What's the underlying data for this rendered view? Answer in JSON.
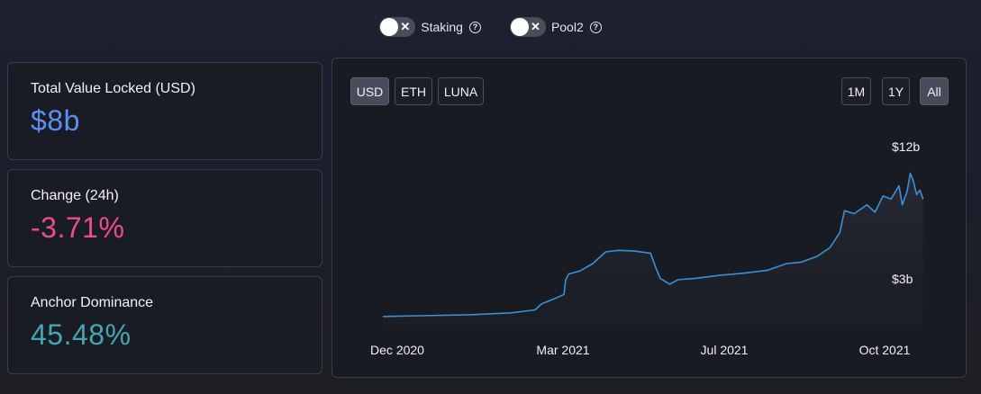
{
  "toggles": [
    {
      "label": "Staking",
      "state": "off"
    },
    {
      "label": "Pool2",
      "state": "off"
    }
  ],
  "stats": {
    "tvl": {
      "label": "Total Value Locked (USD)",
      "value": "$8b"
    },
    "change": {
      "label": "Change (24h)",
      "value": "-3.71%"
    },
    "dominance": {
      "label": "Anchor Dominance",
      "value": "45.48%"
    }
  },
  "chart": {
    "currency_buttons": [
      "USD",
      "ETH",
      "LUNA"
    ],
    "active_currency": "USD",
    "range_buttons": [
      "1M",
      "1Y",
      "All"
    ],
    "active_range": "All"
  },
  "chart_data": {
    "type": "area",
    "ytick_labels": [
      "$12b",
      "$3b"
    ],
    "xtick_labels": [
      "Dec 2020",
      "Mar 2021",
      "Jul 2021",
      "Oct 2021"
    ],
    "series": [
      {
        "color": "#3a8fd6",
        "points": [
          [
            "2020-11-22",
            0.5
          ],
          [
            "2020-12-15",
            0.55
          ],
          [
            "2021-01-15",
            0.62
          ],
          [
            "2021-02-10",
            0.75
          ],
          [
            "2021-02-25",
            0.95
          ],
          [
            "2021-03-01",
            1.35
          ],
          [
            "2021-03-10",
            1.75
          ],
          [
            "2021-03-15",
            2.0
          ],
          [
            "2021-03-16",
            3.0
          ],
          [
            "2021-03-18",
            3.4
          ],
          [
            "2021-03-25",
            3.6
          ],
          [
            "2021-04-02",
            4.1
          ],
          [
            "2021-04-10",
            4.9
          ],
          [
            "2021-04-18",
            5.0
          ],
          [
            "2021-04-28",
            4.95
          ],
          [
            "2021-05-08",
            4.8
          ],
          [
            "2021-05-11",
            3.9
          ],
          [
            "2021-05-14",
            3.1
          ],
          [
            "2021-05-20",
            2.7
          ],
          [
            "2021-05-25",
            3.0
          ],
          [
            "2021-06-05",
            3.1
          ],
          [
            "2021-06-20",
            3.3
          ],
          [
            "2021-07-05",
            3.45
          ],
          [
            "2021-07-20",
            3.65
          ],
          [
            "2021-08-01",
            4.1
          ],
          [
            "2021-08-10",
            4.2
          ],
          [
            "2021-08-20",
            4.6
          ],
          [
            "2021-08-28",
            5.2
          ],
          [
            "2021-09-03",
            6.2
          ],
          [
            "2021-09-06",
            7.7
          ],
          [
            "2021-09-12",
            7.5
          ],
          [
            "2021-09-20",
            8.1
          ],
          [
            "2021-09-25",
            7.6
          ],
          [
            "2021-09-30",
            8.7
          ],
          [
            "2021-10-05",
            8.5
          ],
          [
            "2021-10-10",
            9.4
          ],
          [
            "2021-10-12",
            8.1
          ],
          [
            "2021-10-15",
            9.0
          ],
          [
            "2021-10-17",
            10.25
          ],
          [
            "2021-10-19",
            9.7
          ],
          [
            "2021-10-21",
            8.8
          ],
          [
            "2021-10-23",
            9.1
          ],
          [
            "2021-10-25",
            8.5
          ]
        ]
      }
    ]
  }
}
